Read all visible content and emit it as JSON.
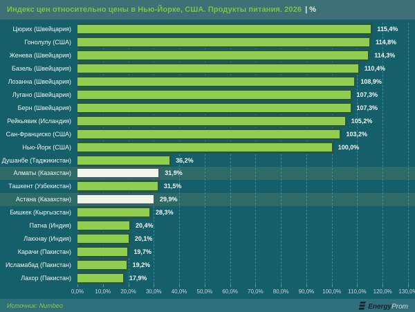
{
  "header": {
    "title": "Индекс цен относительно цены в Нью-Йорке, США. Продукты питания. 2026",
    "suffix": "| %"
  },
  "footer": {
    "source": "Источник: Numbeo",
    "logo_bold": "Energy",
    "logo_light": "Prom"
  },
  "colors": {
    "header_bg": "#3E7077",
    "title_green": "#7FC241",
    "chart_bg": "#155F6A",
    "highlight_band": "#2E6B66",
    "bar_green": "#8FCE4F",
    "bar_white": "#F2F6EA",
    "gridline": "#5AACBA",
    "footer_bg": "#2F707B",
    "source_text": "#8CC74B"
  },
  "chart_data": {
    "type": "bar",
    "orientation": "horizontal",
    "title": "Индекс цен относительно цены в Нью-Йорке, США. Продукты питания. 2026 | %",
    "categories": [
      "Цюрих (Швейцария)",
      "Гонолулу (США)",
      "Женева (Швейцария)",
      "Базель (Швейцария)",
      "Лозанна (Швейцария)",
      "Лугано (Швейцария)",
      "Берн (Швейцария)",
      "Рейкьявик (Исландия)",
      "Сан-Франциско (США)",
      "Нью-Йорк (США)",
      "Душанбе (Таджикистан)",
      "Алматы (Казахстан)",
      "Ташкент (Узбекистан)",
      "Астана (Казахстан)",
      "Бишкек (Кыргызстан)",
      "Патна (Индия)",
      "Лакхнау (Индия)",
      "Карачи (Пакистан)",
      "Исламабад (Пакистан)",
      "Лахор (Пакистан)"
    ],
    "values": [
      115.4,
      114.8,
      114.3,
      110.4,
      108.9,
      107.3,
      107.3,
      105.2,
      103.2,
      100.0,
      36.2,
      31.9,
      31.5,
      29.9,
      28.3,
      20.4,
      20.1,
      19.7,
      19.2,
      17.9
    ],
    "value_labels": [
      "115,4%",
      "114,8%",
      "114,3%",
      "110,4%",
      "108,9%",
      "107,3%",
      "107,3%",
      "105,2%",
      "103,2%",
      "100,0%",
      "36,2%",
      "31,9%",
      "31,5%",
      "29,9%",
      "28,3%",
      "20,4%",
      "20,1%",
      "19,7%",
      "19,2%",
      "17,9%"
    ],
    "highlight_indices": [
      11,
      13
    ],
    "highlighted_categories": [
      "Алматы (Казахстан)",
      "Астана (Казахстан)"
    ],
    "xlim": [
      0,
      130
    ],
    "x_ticks": [
      "0,0%",
      "10,0%",
      "20,0%",
      "30,0%",
      "40,0%",
      "50,0%",
      "60,0%",
      "70,0%",
      "80,0%",
      "90,0%",
      "100,0%",
      "110,0%",
      "120,0%",
      "130,0%"
    ],
    "grid": "vertical-dashed",
    "legend": "none",
    "source": "Numbeo"
  }
}
